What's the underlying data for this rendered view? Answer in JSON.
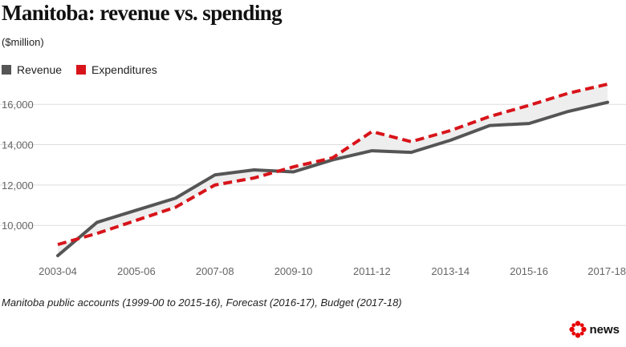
{
  "title": "Manitoba: revenue vs. spending",
  "subtitle": "($million)",
  "source": "Manitoba public accounts (1999-00 to 2015-16), Forecast (2016-17), Budget (2017-18)",
  "brand": "news",
  "colors": {
    "revenue": "#555555",
    "expenditures": "#d7141a",
    "gap_fill": "#eeeeee",
    "grid": "#dddddd",
    "brand": "#e60505"
  },
  "chart_data": {
    "type": "line",
    "x": [
      "2003-04",
      "2004-05",
      "2005-06",
      "2006-07",
      "2007-08",
      "2008-09",
      "2009-10",
      "2010-11",
      "2011-12",
      "2012-13",
      "2013-14",
      "2014-15",
      "2015-16",
      "2016-17",
      "2017-18"
    ],
    "x_tick_labels": [
      "2003-04",
      "2005-06",
      "2007-08",
      "2009-10",
      "2011-12",
      "2013-14",
      "2015-16",
      "2017-18"
    ],
    "y_tick_values": [
      10000,
      12000,
      14000,
      16000
    ],
    "y_tick_labels": [
      "10,000",
      "12,000",
      "14,000",
      "16,000"
    ],
    "ylim": [
      8300,
      17200
    ],
    "grid": true,
    "legend_position": "top-left",
    "series": [
      {
        "name": "Revenue",
        "style": "solid",
        "values": [
          8500,
          10150,
          10750,
          11350,
          12500,
          12750,
          12650,
          13250,
          13700,
          13620,
          14220,
          14950,
          15050,
          15650,
          16100
        ]
      },
      {
        "name": "Expenditures",
        "style": "dashed",
        "values": [
          9050,
          9600,
          10250,
          10900,
          12000,
          12350,
          12900,
          13350,
          14650,
          14150,
          14700,
          15400,
          15950,
          16550,
          17000
        ]
      }
    ]
  }
}
